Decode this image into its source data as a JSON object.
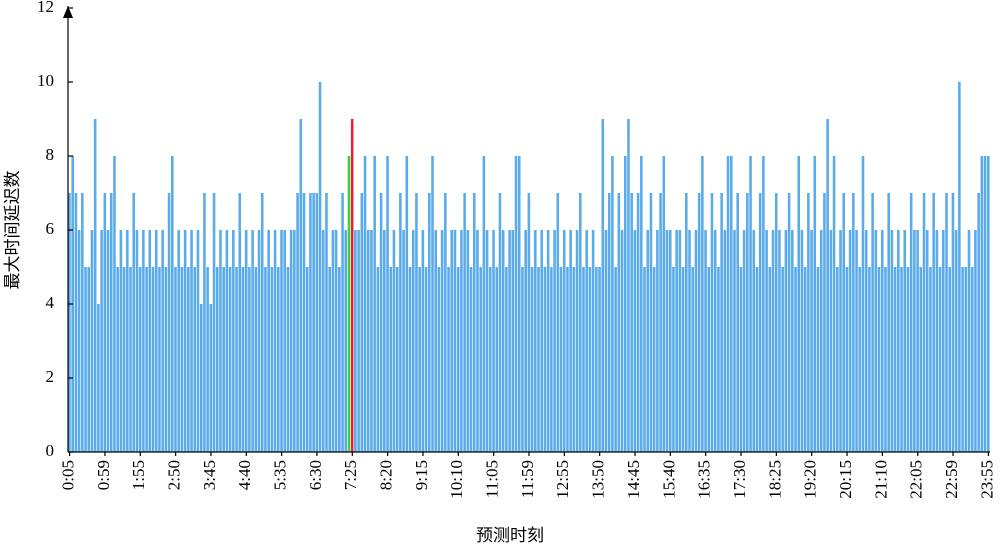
{
  "chart_data": {
    "type": "bar",
    "x_label": "预测时刻",
    "y_label": "最大时间延迟数",
    "categories": [
      "0:05",
      null,
      null,
      null,
      null,
      null,
      null,
      null,
      null,
      null,
      null,
      "0:59",
      null,
      null,
      null,
      null,
      null,
      null,
      null,
      null,
      null,
      null,
      "1:55",
      null,
      null,
      null,
      null,
      null,
      null,
      null,
      null,
      null,
      null,
      "2:50",
      null,
      null,
      null,
      null,
      null,
      null,
      null,
      null,
      null,
      null,
      "3:45",
      null,
      null,
      null,
      null,
      null,
      null,
      null,
      null,
      null,
      null,
      "4:40",
      null,
      null,
      null,
      null,
      null,
      null,
      null,
      null,
      null,
      null,
      "5:35",
      null,
      null,
      null,
      null,
      null,
      null,
      null,
      null,
      null,
      null,
      "6:30",
      null,
      null,
      null,
      null,
      null,
      null,
      null,
      null,
      null,
      null,
      "7:25",
      null,
      null,
      null,
      null,
      null,
      null,
      null,
      null,
      null,
      null,
      "8:20",
      null,
      null,
      null,
      null,
      null,
      null,
      null,
      null,
      null,
      null,
      "9:15",
      null,
      null,
      null,
      null,
      null,
      null,
      null,
      null,
      null,
      null,
      "10:10",
      null,
      null,
      null,
      null,
      null,
      null,
      null,
      null,
      null,
      null,
      "11:05",
      null,
      null,
      null,
      null,
      null,
      null,
      null,
      null,
      null,
      null,
      "11:59",
      null,
      null,
      null,
      null,
      null,
      null,
      null,
      null,
      null,
      null,
      "12:55",
      null,
      null,
      null,
      null,
      null,
      null,
      null,
      null,
      null,
      null,
      "13:50",
      null,
      null,
      null,
      null,
      null,
      null,
      null,
      null,
      null,
      null,
      "14:45",
      null,
      null,
      null,
      null,
      null,
      null,
      null,
      null,
      null,
      null,
      "15:40",
      null,
      null,
      null,
      null,
      null,
      null,
      null,
      null,
      null,
      null,
      "16:35",
      null,
      null,
      null,
      null,
      null,
      null,
      null,
      null,
      null,
      null,
      "17:30",
      null,
      null,
      null,
      null,
      null,
      null,
      null,
      null,
      null,
      null,
      "18:25",
      null,
      null,
      null,
      null,
      null,
      null,
      null,
      null,
      null,
      null,
      "19:20",
      null,
      null,
      null,
      null,
      null,
      null,
      null,
      null,
      null,
      null,
      "20:15",
      null,
      null,
      null,
      null,
      null,
      null,
      null,
      null,
      null,
      null,
      "21:10",
      null,
      null,
      null,
      null,
      null,
      null,
      null,
      null,
      null,
      null,
      "22:05",
      null,
      null,
      null,
      null,
      null,
      null,
      null,
      null,
      null,
      null,
      "22:59",
      null,
      null,
      null,
      null,
      null,
      null,
      null,
      null,
      null,
      null,
      "23:55"
    ],
    "values": [
      7,
      8,
      7,
      6,
      7,
      5,
      5,
      6,
      9,
      4,
      6,
      7,
      6,
      7,
      8,
      5,
      6,
      5,
      6,
      5,
      7,
      6,
      5,
      6,
      5,
      6,
      5,
      6,
      5,
      6,
      5,
      7,
      8,
      5,
      6,
      5,
      6,
      5,
      6,
      5,
      6,
      4,
      7,
      5,
      4,
      7,
      5,
      6,
      5,
      6,
      5,
      6,
      5,
      7,
      5,
      6,
      5,
      6,
      5,
      6,
      7,
      5,
      6,
      5,
      6,
      5,
      6,
      6,
      5,
      6,
      6,
      7,
      9,
      7,
      5,
      7,
      7,
      7,
      10,
      6,
      7,
      5,
      6,
      6,
      5,
      7,
      6,
      8,
      9,
      6,
      6,
      7,
      8,
      6,
      6,
      8,
      5,
      7,
      6,
      8,
      5,
      6,
      5,
      7,
      6,
      8,
      5,
      6,
      7,
      5,
      6,
      5,
      7,
      8,
      6,
      5,
      6,
      7,
      5,
      6,
      6,
      5,
      6,
      7,
      6,
      5,
      7,
      6,
      5,
      8,
      6,
      5,
      6,
      5,
      7,
      6,
      5,
      6,
      6,
      8,
      8,
      5,
      6,
      7,
      5,
      6,
      5,
      6,
      5,
      6,
      5,
      6,
      7,
      5,
      6,
      5,
      6,
      5,
      6,
      7,
      5,
      6,
      5,
      6,
      5,
      5,
      9,
      6,
      7,
      8,
      5,
      7,
      6,
      8,
      9,
      7,
      6,
      7,
      8,
      5,
      6,
      7,
      5,
      6,
      7,
      8,
      6,
      6,
      5,
      6,
      6,
      5,
      7,
      6,
      5,
      6,
      7,
      8,
      6,
      5,
      7,
      6,
      5,
      7,
      6,
      8,
      8,
      6,
      7,
      5,
      6,
      7,
      8,
      6,
      5,
      7,
      8,
      6,
      5,
      6,
      7,
      6,
      5,
      6,
      7,
      6,
      5,
      8,
      6,
      5,
      7,
      6,
      8,
      5,
      6,
      7,
      9,
      6,
      8,
      5,
      6,
      7,
      5,
      6,
      7,
      6,
      5,
      8,
      6,
      5,
      7,
      6,
      5,
      6,
      5,
      7,
      6,
      5,
      6,
      5,
      6,
      5,
      7,
      6,
      6,
      5,
      7,
      6,
      5,
      7,
      6,
      5,
      6,
      7,
      5,
      7,
      6,
      10,
      5,
      5,
      6,
      5,
      6,
      7,
      8,
      8,
      8
    ],
    "color": "#5aabea",
    "highlight": {
      "87": "#3fd13f",
      "88": "#e8203a"
    },
    "ylim": [
      0,
      12
    ],
    "yticks": [
      0,
      2,
      4,
      6,
      8,
      10,
      12
    ]
  }
}
